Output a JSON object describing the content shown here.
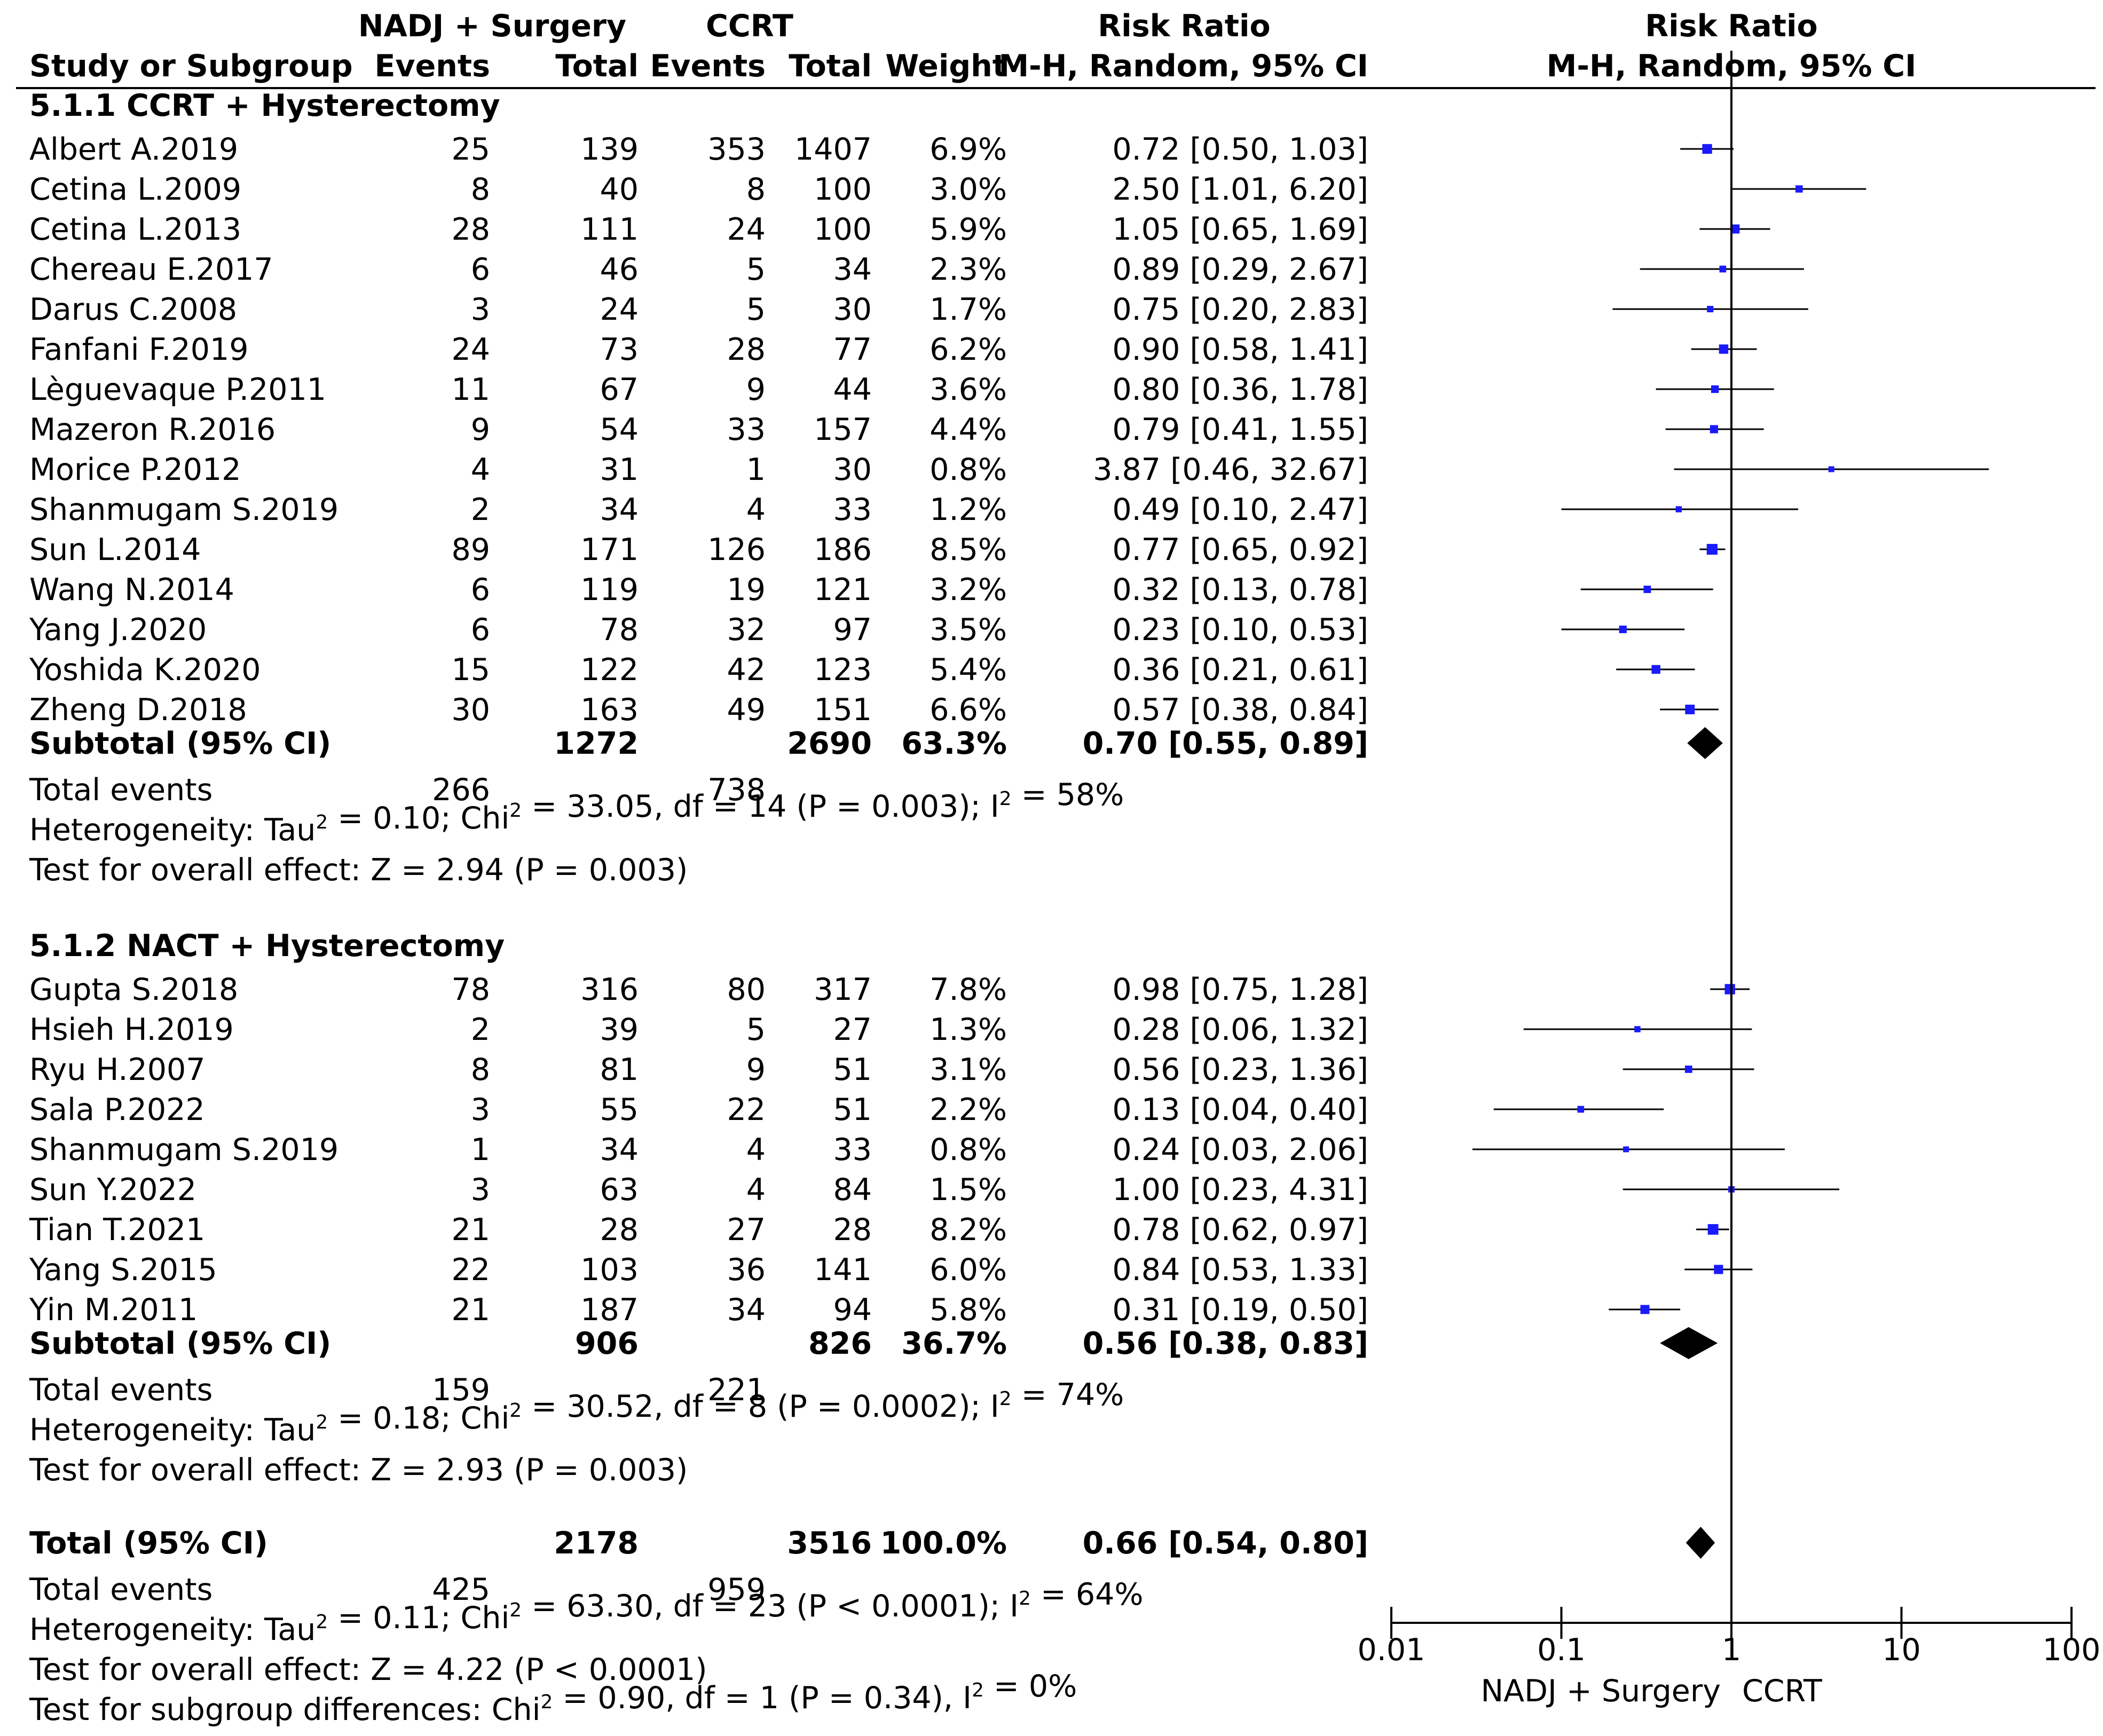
{
  "colors": {
    "square": "#1a1aff",
    "line": "#000000",
    "background": "#ffffff"
  },
  "headers": {
    "group1_title": "NADJ + Surgery",
    "group2_title": "CCRT",
    "rr_title": "Risk Ratio",
    "plot_title": "Risk Ratio",
    "col_study": "Study or Subgroup",
    "col_events1": "Events",
    "col_total1": "Total",
    "col_events2": "Events",
    "col_total2": "Total",
    "col_weight": "Weight",
    "col_rr": "M-H, Random, 95% CI",
    "col_plot": "M-H, Random, 95% CI"
  },
  "chart_data": {
    "type": "forest",
    "measure": "Risk Ratio",
    "method": "M-H, Random, 95% CI",
    "axis": {
      "scale": "log",
      "range": [
        0.01,
        100
      ],
      "ticks": [
        0.01,
        0.1,
        1,
        10,
        100
      ],
      "tick_labels": [
        "0.01",
        "0.1",
        "1",
        "10",
        "100"
      ],
      "reference": 1,
      "favours_left": "NADJ + Surgery",
      "favours_right": "CCRT"
    },
    "subgroups": [
      {
        "title": "5.1.1 CCRT + Hysterectomy",
        "studies": [
          {
            "study": "Albert A.2019",
            "e1": "25",
            "t1": "139",
            "e2": "353",
            "t2": "1407",
            "weight": "6.9%",
            "ci_text": "0.72 [0.50, 1.03]",
            "rr": 0.72,
            "lo": 0.5,
            "hi": 1.03
          },
          {
            "study": "Cetina L.2009",
            "e1": "8",
            "t1": "40",
            "e2": "8",
            "t2": "100",
            "weight": "3.0%",
            "ci_text": "2.50 [1.01, 6.20]",
            "rr": 2.5,
            "lo": 1.01,
            "hi": 6.2
          },
          {
            "study": "Cetina L.2013",
            "e1": "28",
            "t1": "111",
            "e2": "24",
            "t2": "100",
            "weight": "5.9%",
            "ci_text": "1.05 [0.65, 1.69]",
            "rr": 1.05,
            "lo": 0.65,
            "hi": 1.69
          },
          {
            "study": "Chereau E.2017",
            "e1": "6",
            "t1": "46",
            "e2": "5",
            "t2": "34",
            "weight": "2.3%",
            "ci_text": "0.89 [0.29, 2.67]",
            "rr": 0.89,
            "lo": 0.29,
            "hi": 2.67
          },
          {
            "study": "Darus C.2008",
            "e1": "3",
            "t1": "24",
            "e2": "5",
            "t2": "30",
            "weight": "1.7%",
            "ci_text": "0.75 [0.20, 2.83]",
            "rr": 0.75,
            "lo": 0.2,
            "hi": 2.83
          },
          {
            "study": "Fanfani F.2019",
            "e1": "24",
            "t1": "73",
            "e2": "28",
            "t2": "77",
            "weight": "6.2%",
            "ci_text": "0.90 [0.58, 1.41]",
            "rr": 0.9,
            "lo": 0.58,
            "hi": 1.41
          },
          {
            "study": "Lèguevaque P.2011",
            "e1": "11",
            "t1": "67",
            "e2": "9",
            "t2": "44",
            "weight": "3.6%",
            "ci_text": "0.80 [0.36, 1.78]",
            "rr": 0.8,
            "lo": 0.36,
            "hi": 1.78
          },
          {
            "study": "Mazeron R.2016",
            "e1": "9",
            "t1": "54",
            "e2": "33",
            "t2": "157",
            "weight": "4.4%",
            "ci_text": "0.79 [0.41, 1.55]",
            "rr": 0.79,
            "lo": 0.41,
            "hi": 1.55
          },
          {
            "study": "Morice P.2012",
            "e1": "4",
            "t1": "31",
            "e2": "1",
            "t2": "30",
            "weight": "0.8%",
            "ci_text": "3.87 [0.46, 32.67]",
            "rr": 3.87,
            "lo": 0.46,
            "hi": 32.67
          },
          {
            "study": "Shanmugam S.2019",
            "e1": "2",
            "t1": "34",
            "e2": "4",
            "t2": "33",
            "weight": "1.2%",
            "ci_text": "0.49 [0.10, 2.47]",
            "rr": 0.49,
            "lo": 0.1,
            "hi": 2.47
          },
          {
            "study": "Sun L.2014",
            "e1": "89",
            "t1": "171",
            "e2": "126",
            "t2": "186",
            "weight": "8.5%",
            "ci_text": "0.77 [0.65, 0.92]",
            "rr": 0.77,
            "lo": 0.65,
            "hi": 0.92
          },
          {
            "study": "Wang N.2014",
            "e1": "6",
            "t1": "119",
            "e2": "19",
            "t2": "121",
            "weight": "3.2%",
            "ci_text": "0.32 [0.13, 0.78]",
            "rr": 0.32,
            "lo": 0.13,
            "hi": 0.78
          },
          {
            "study": "Yang J.2020",
            "e1": "6",
            "t1": "78",
            "e2": "32",
            "t2": "97",
            "weight": "3.5%",
            "ci_text": "0.23 [0.10, 0.53]",
            "rr": 0.23,
            "lo": 0.1,
            "hi": 0.53
          },
          {
            "study": "Yoshida K.2020",
            "e1": "15",
            "t1": "122",
            "e2": "42",
            "t2": "123",
            "weight": "5.4%",
            "ci_text": "0.36 [0.21, 0.61]",
            "rr": 0.36,
            "lo": 0.21,
            "hi": 0.61
          },
          {
            "study": "Zheng D.2018",
            "e1": "30",
            "t1": "163",
            "e2": "49",
            "t2": "151",
            "weight": "6.6%",
            "ci_text": "0.57 [0.38, 0.84]",
            "rr": 0.57,
            "lo": 0.38,
            "hi": 0.84
          }
        ],
        "subtotal": {
          "label": "Subtotal (95% CI)",
          "t1": "1272",
          "t2": "2690",
          "weight": "63.3%",
          "ci_text": "0.70 [0.55, 0.89]",
          "rr": 0.7,
          "lo": 0.55,
          "hi": 0.89
        },
        "total_events": {
          "label": "Total events",
          "e1": "266",
          "e2": "738"
        },
        "heterogeneity": {
          "before_tau": "Heterogeneity: Tau",
          "tau_exp": "2",
          "before_chi": " = 0.10; Chi",
          "chi_exp": "2",
          "before_i": " = 33.05, df = 14 (P = 0.003); I",
          "i_exp": "2",
          "after_i": " = 58%"
        },
        "overall_effect": "Test for overall effect: Z = 2.94 (P = 0.003)"
      },
      {
        "title": "5.1.2 NACT + Hysterectomy",
        "studies": [
          {
            "study": "Gupta S.2018",
            "e1": "78",
            "t1": "316",
            "e2": "80",
            "t2": "317",
            "weight": "7.8%",
            "ci_text": "0.98 [0.75, 1.28]",
            "rr": 0.98,
            "lo": 0.75,
            "hi": 1.28
          },
          {
            "study": "Hsieh H.2019",
            "e1": "2",
            "t1": "39",
            "e2": "5",
            "t2": "27",
            "weight": "1.3%",
            "ci_text": "0.28 [0.06, 1.32]",
            "rr": 0.28,
            "lo": 0.06,
            "hi": 1.32
          },
          {
            "study": "Ryu H.2007",
            "e1": "8",
            "t1": "81",
            "e2": "9",
            "t2": "51",
            "weight": "3.1%",
            "ci_text": "0.56 [0.23, 1.36]",
            "rr": 0.56,
            "lo": 0.23,
            "hi": 1.36
          },
          {
            "study": "Sala P.2022",
            "e1": "3",
            "t1": "55",
            "e2": "22",
            "t2": "51",
            "weight": "2.2%",
            "ci_text": "0.13 [0.04, 0.40]",
            "rr": 0.13,
            "lo": 0.04,
            "hi": 0.4
          },
          {
            "study": "Shanmugam S.2019",
            "e1": "1",
            "t1": "34",
            "e2": "4",
            "t2": "33",
            "weight": "0.8%",
            "ci_text": "0.24 [0.03, 2.06]",
            "rr": 0.24,
            "lo": 0.03,
            "hi": 2.06
          },
          {
            "study": "Sun Y.2022",
            "e1": "3",
            "t1": "63",
            "e2": "4",
            "t2": "84",
            "weight": "1.5%",
            "ci_text": "1.00 [0.23, 4.31]",
            "rr": 1.0,
            "lo": 0.23,
            "hi": 4.31
          },
          {
            "study": "Tian T.2021",
            "e1": "21",
            "t1": "28",
            "e2": "27",
            "t2": "28",
            "weight": "8.2%",
            "ci_text": "0.78 [0.62, 0.97]",
            "rr": 0.78,
            "lo": 0.62,
            "hi": 0.97
          },
          {
            "study": "Yang S.2015",
            "e1": "22",
            "t1": "103",
            "e2": "36",
            "t2": "141",
            "weight": "6.0%",
            "ci_text": "0.84 [0.53, 1.33]",
            "rr": 0.84,
            "lo": 0.53,
            "hi": 1.33
          },
          {
            "study": "Yin M.2011",
            "e1": "21",
            "t1": "187",
            "e2": "34",
            "t2": "94",
            "weight": "5.8%",
            "ci_text": "0.31 [0.19, 0.50]",
            "rr": 0.31,
            "lo": 0.19,
            "hi": 0.5
          }
        ],
        "subtotal": {
          "label": "Subtotal (95% CI)",
          "t1": "906",
          "t2": "826",
          "weight": "36.7%",
          "ci_text": "0.56 [0.38, 0.83]",
          "rr": 0.56,
          "lo": 0.38,
          "hi": 0.83
        },
        "total_events": {
          "label": "Total events",
          "e1": "159",
          "e2": "221"
        },
        "heterogeneity": {
          "before_tau": "Heterogeneity: Tau",
          "tau_exp": "2",
          "before_chi": " = 0.18; Chi",
          "chi_exp": "2",
          "before_i": " = 30.52, df = 8 (P = 0.0002); I",
          "i_exp": "2",
          "after_i": " = 74%"
        },
        "overall_effect": "Test for overall effect: Z = 2.93 (P = 0.003)"
      }
    ],
    "overall": {
      "label": "Total (95% CI)",
      "t1": "2178",
      "t2": "3516",
      "weight": "100.0%",
      "ci_text": "0.66 [0.54, 0.80]",
      "rr": 0.66,
      "lo": 0.54,
      "hi": 0.8,
      "total_events": {
        "label": "Total events",
        "e1": "425",
        "e2": "959"
      },
      "heterogeneity": {
        "before_tau": "Heterogeneity: Tau",
        "tau_exp": "2",
        "before_chi": " = 0.11; Chi",
        "chi_exp": "2",
        "before_i": " = 63.30, df = 23 (P < 0.0001); I",
        "i_exp": "2",
        "after_i": " = 64%"
      },
      "overall_effect": "Test for overall effect: Z = 4.22 (P < 0.0001)",
      "subgroup_diff": {
        "before_chi": "Test for subgroup differences: Chi",
        "chi_exp": "2",
        "before_i": " = 0.90, df = 1 (P = 0.34), I",
        "i_exp": "2",
        "after_i": " = 0%"
      }
    }
  }
}
